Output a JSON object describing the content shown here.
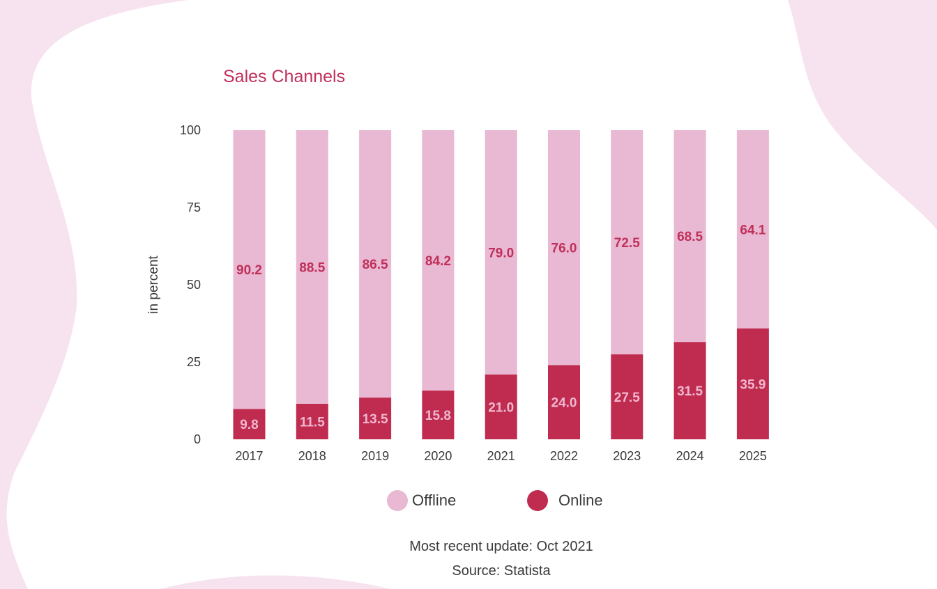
{
  "chart_data": {
    "type": "bar",
    "stacked": true,
    "title": "Sales Channels",
    "xlabel": "",
    "ylabel": "in percent",
    "ylim": [
      0,
      100
    ],
    "yticks": [
      0,
      25,
      50,
      75,
      100
    ],
    "grid": false,
    "legend_position": "bottom",
    "categories": [
      "2017",
      "2018",
      "2019",
      "2020",
      "2021",
      "2022",
      "2023",
      "2024",
      "2025"
    ],
    "series": [
      {
        "name": "Online",
        "color": "#bf2c50",
        "label_color": "#f0b8d0",
        "values": [
          9.8,
          11.5,
          13.5,
          15.8,
          21.0,
          24.0,
          27.5,
          31.5,
          35.9
        ]
      },
      {
        "name": "Offline",
        "color": "#e9b8d2",
        "label_color": "#c0305a",
        "values": [
          90.2,
          88.5,
          86.5,
          84.2,
          79.0,
          76.0,
          72.5,
          68.5,
          64.1
        ]
      }
    ],
    "value_labels": [
      [
        "9.8",
        "11.5",
        "13.5",
        "15.8",
        "21.0",
        "24.0",
        "27.5",
        "31.5",
        "35.9"
      ],
      [
        "90.2",
        "88.5",
        "86.5",
        "84.2",
        "79.0",
        "76.0",
        "72.5",
        "68.5",
        "64.1"
      ]
    ],
    "legend": [
      "Offline",
      "Online"
    ]
  },
  "footer": {
    "update": "Most recent update: Oct 2021",
    "source": "Source: Statista"
  }
}
